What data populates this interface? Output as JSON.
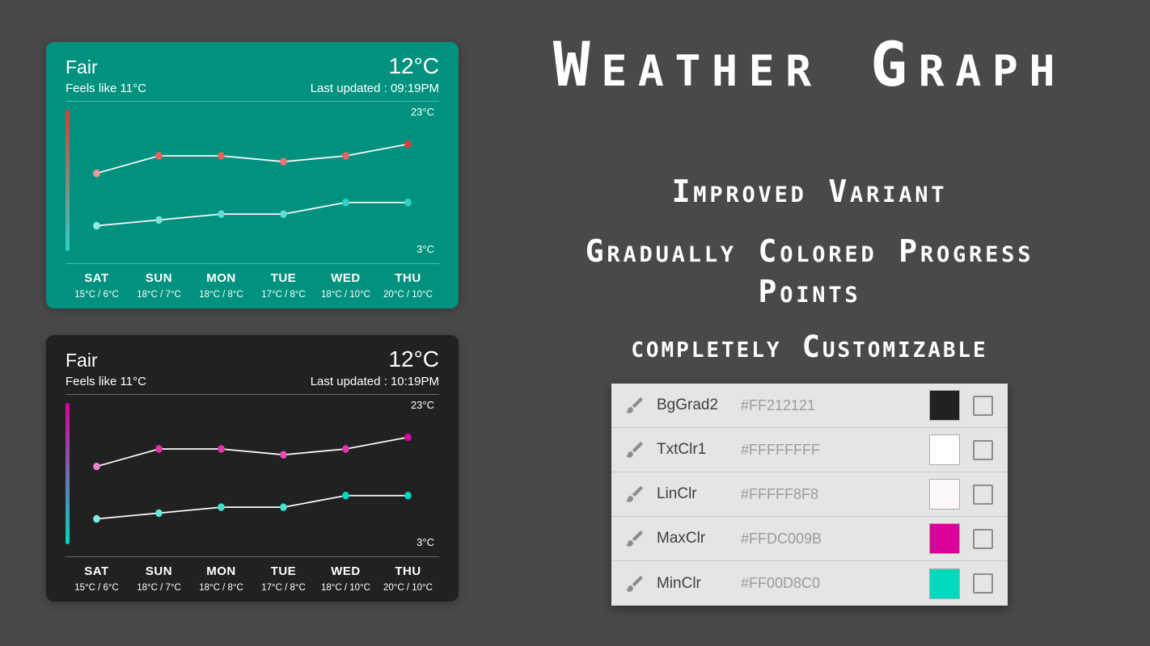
{
  "page": {
    "bg": "#494949"
  },
  "hero": {
    "title": "Weather Graph",
    "taglines": [
      "Improved Variant",
      "Gradually Colored Progress Points",
      "completely Customizable"
    ]
  },
  "widgets": [
    {
      "condition": "Fair",
      "temperature": "12°C",
      "feels_like": "Feels like 11°C",
      "last_updated": "Last updated : 09:19PM",
      "theme": {
        "bg": "#00927F",
        "text": "#FFFFFF",
        "line": "#FFF8F8",
        "max_color": "#E53935",
        "min_color": "#2FD0C8"
      }
    },
    {
      "condition": "Fair",
      "temperature": "12°C",
      "feels_like": "Feels like 11°C",
      "last_updated": "Last updated : 10:19PM",
      "theme": {
        "bg": "#212121",
        "text": "#FFFFFF",
        "line": "#FFF8F8",
        "max_color": "#DC009B",
        "min_color": "#00D8C0"
      }
    }
  ],
  "chart_data": {
    "type": "line",
    "title": "",
    "xlabel": "",
    "ylabel": "",
    "categories": [
      "SAT",
      "SUN",
      "MON",
      "TUE",
      "WED",
      "THU"
    ],
    "series": [
      {
        "name": "max",
        "values": [
          15,
          18,
          18,
          17,
          18,
          20
        ]
      },
      {
        "name": "min",
        "values": [
          6,
          7,
          8,
          8,
          10,
          10
        ]
      }
    ],
    "day_temp_labels": [
      "15°C / 6°C",
      "18°C / 7°C",
      "18°C / 8°C",
      "17°C / 8°C",
      "18°C / 10°C",
      "20°C / 10°C"
    ],
    "ylim": [
      3,
      23
    ],
    "max_label": "23°C",
    "min_label": "3°C",
    "grid": false,
    "legend": false
  },
  "settings": {
    "rows": [
      {
        "label": "BgGrad2",
        "hex": "#FF212121",
        "swatch": "#212121"
      },
      {
        "label": "TxtClr1",
        "hex": "#FFFFFFFF",
        "swatch": "#FFFFFF"
      },
      {
        "label": "LinClr",
        "hex": "#FFFFF8F8",
        "swatch": "#FFF8F8"
      },
      {
        "label": "MaxClr",
        "hex": "#FFDC009B",
        "swatch": "#DC009B"
      },
      {
        "label": "MinClr",
        "hex": "#FF00D8C0",
        "swatch": "#00D8C0"
      }
    ]
  }
}
